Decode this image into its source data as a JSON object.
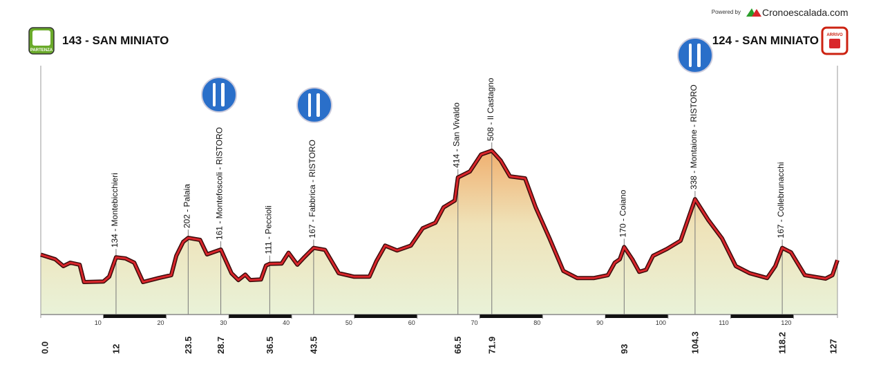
{
  "header": {
    "powered_by": "Powered by",
    "brand": "Cronoescalada.com"
  },
  "chart_data": {
    "type": "profile",
    "start": {
      "km": {
        "value": 0,
        "label": "0.0"
      },
      "title": {
        "value": 143,
        "label": "143 - SAN MINIATO"
      },
      "badge": "PARTENZA"
    },
    "end": {
      "km": 127,
      "title": {
        "value": 124,
        "label": "124 - SAN MINIATO"
      },
      "badge": "ARRIVO"
    },
    "waypoints": [
      {
        "km": 12,
        "name": {
          "value": 134,
          "label": "134 - Montebicchieri"
        }
      },
      {
        "km": 23.5,
        "name": {
          "value": 202,
          "label": "202 - Palaia"
        }
      },
      {
        "km": 28.7,
        "name": {
          "value": 161,
          "label": "161 - Montefoscoli - RISTORO"
        }
      },
      {
        "km": 36.5,
        "name": {
          "value": 111,
          "label": "111 - Peccioli"
        }
      },
      {
        "km": 43.5,
        "name": {
          "value": 167,
          "label": "167 - Fabbrica - RISTORO"
        }
      },
      {
        "km": 66.5,
        "name": {
          "value": 414,
          "label": "414 - San Vivaldo"
        }
      },
      {
        "km": 71.9,
        "name": {
          "value": 508,
          "label": "508 - Il Castagno"
        }
      },
      {
        "km": 93,
        "name": {
          "value": 170,
          "label": "170 - Coiano"
        }
      },
      {
        "km": 104.3,
        "name": {
          "value": 338,
          "label": "338 - Montaione - RISTORO"
        }
      },
      {
        "km": 118.2,
        "name": {
          "value": 167,
          "label": "167 - Collebrunacchi"
        }
      }
    ],
    "x": [
      0,
      2.3,
      3.6,
      4.7,
      6.2,
      6.9,
      10,
      10.9,
      12,
      13.5,
      14.9,
      16.3,
      18.8,
      20.8,
      21.6,
      22.7,
      23.5,
      25.4,
      26.5,
      28.7,
      30.4,
      31.5,
      32.6,
      33.4,
      35.1,
      35.9,
      36.5,
      38.4,
      39.5,
      40.9,
      42,
      43.5,
      45.3,
      47.5,
      49.9,
      52.4,
      53.5,
      54.9,
      56.8,
      59,
      60.9,
      62.9,
      64.2,
      66,
      66.5,
      68.4,
      70.2,
      71.9,
      73.3,
      74.8,
      77.2,
      78.9,
      81.1,
      83.3,
      85.5,
      88.2,
      90.4,
      91.5,
      92.3,
      93,
      94.3,
      95.4,
      96.5,
      97.6,
      99.8,
      102,
      104.3,
      106.4,
      108.6,
      110.8,
      113,
      115.8,
      117.1,
      118.2,
      119.6,
      121.8,
      125.1,
      126.2,
      127
    ],
    "series": [
      {
        "color": "#d9262b",
        "values": [
          143,
          127,
          103,
          115,
          108,
          47,
          49,
          66,
          134,
          130,
          115,
          47,
          61,
          71,
          139,
          188,
          202,
          195,
          144,
          161,
          78,
          54,
          73,
          54,
          56,
          105,
          111,
          112,
          150,
          108,
          134,
          167,
          160,
          78,
          66,
          66,
          120,
          175,
          158,
          175,
          236,
          255,
          309,
          333,
          414,
          435,
          495,
          508,
          474,
          418,
          411,
          309,
          200,
          86,
          61,
          61,
          71,
          115,
          127,
          170,
          127,
          83,
          90,
          139,
          163,
          192,
          338,
          265,
          200,
          103,
          78,
          61,
          103,
          167,
          151,
          71,
          59,
          71,
          124
        ]
      }
    ],
    "xlim": [
      0,
      127
    ],
    "ylim": [
      -67,
      508
    ],
    "xticks": [
      10,
      20,
      30,
      40,
      50,
      60,
      70,
      80,
      90,
      100,
      110,
      120
    ]
  }
}
